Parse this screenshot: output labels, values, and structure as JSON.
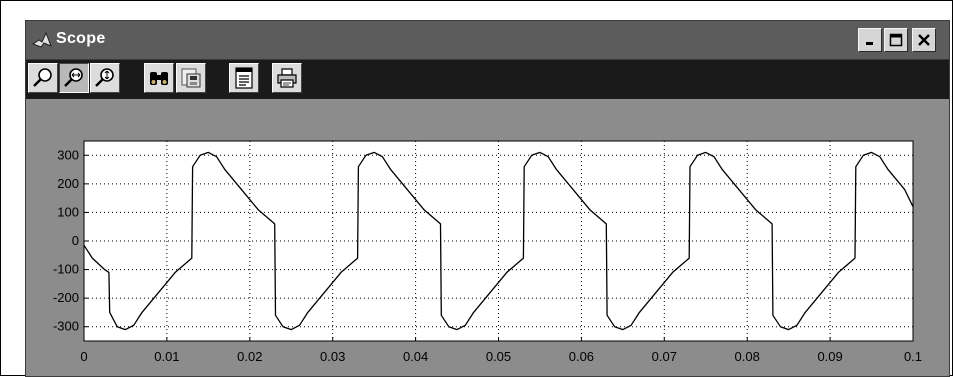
{
  "window": {
    "title": "Scope",
    "controls": [
      "minimize",
      "maximize",
      "close"
    ]
  },
  "toolbar": {
    "buttons": [
      {
        "icon": "zoom-icon"
      },
      {
        "icon": "zoom-x-icon",
        "pressed": true
      },
      {
        "icon": "zoom-y-icon"
      },
      {
        "icon": "autoscale-binoculars-icon"
      },
      {
        "icon": "save-axes-settings-icon"
      },
      {
        "icon": "scope-parameters-icon"
      },
      {
        "icon": "print-icon"
      }
    ]
  },
  "colors": {
    "window_background": "#8c8c8c",
    "titlebar": "#5c5c5c",
    "toolbar": "#1a1a1a",
    "plot_background": "#ffffff",
    "trace": "#000000"
  },
  "chart_data": {
    "type": "line",
    "xlim": [
      0,
      0.1
    ],
    "ylim": [
      -350,
      350
    ],
    "x_ticks": [
      "0",
      "0.01",
      "0.02",
      "0.03",
      "0.04",
      "0.05",
      "0.06",
      "0.07",
      "0.08",
      "0.09",
      "0.1"
    ],
    "y_ticks": [
      "300",
      "200",
      "100",
      "0",
      "-100",
      "-200",
      "-300"
    ],
    "grid": true,
    "series": [
      {
        "x": [
          0,
          0.001,
          0.0025,
          0.003,
          0.0031,
          0.004,
          0.005,
          0.006,
          0.007,
          0.009,
          0.011,
          0.013,
          0.0131,
          0.014,
          0.015,
          0.016,
          0.017,
          0.019,
          0.021,
          0.023,
          0.0231,
          0.024,
          0.025,
          0.026,
          0.027,
          0.029,
          0.031,
          0.033,
          0.0331,
          0.034,
          0.035,
          0.036,
          0.037,
          0.039,
          0.041,
          0.043,
          0.0431,
          0.044,
          0.045,
          0.046,
          0.047,
          0.049,
          0.051,
          0.053,
          0.0531,
          0.054,
          0.055,
          0.056,
          0.057,
          0.059,
          0.061,
          0.063,
          0.0631,
          0.064,
          0.065,
          0.066,
          0.067,
          0.069,
          0.071,
          0.073,
          0.0731,
          0.074,
          0.075,
          0.076,
          0.077,
          0.079,
          0.081,
          0.083,
          0.0831,
          0.084,
          0.085,
          0.086,
          0.087,
          0.089,
          0.091,
          0.093,
          0.0931,
          0.094,
          0.095,
          0.096,
          0.097,
          0.099,
          0.1
        ],
        "y": [
          -15,
          -60,
          -100,
          -110,
          -250,
          -300,
          -310,
          -295,
          -250,
          -180,
          -110,
          -60,
          260,
          300,
          310,
          295,
          250,
          180,
          110,
          60,
          -260,
          -300,
          -310,
          -295,
          -250,
          -180,
          -110,
          -60,
          260,
          300,
          310,
          295,
          250,
          180,
          110,
          60,
          -260,
          -300,
          -310,
          -295,
          -250,
          -180,
          -110,
          -60,
          260,
          300,
          310,
          295,
          250,
          180,
          110,
          60,
          -260,
          -300,
          -310,
          -295,
          -250,
          -180,
          -110,
          -60,
          260,
          300,
          310,
          295,
          250,
          180,
          110,
          60,
          -260,
          -300,
          -310,
          -295,
          -250,
          -180,
          -110,
          -60,
          260,
          300,
          310,
          295,
          250,
          180,
          120
        ]
      }
    ]
  }
}
